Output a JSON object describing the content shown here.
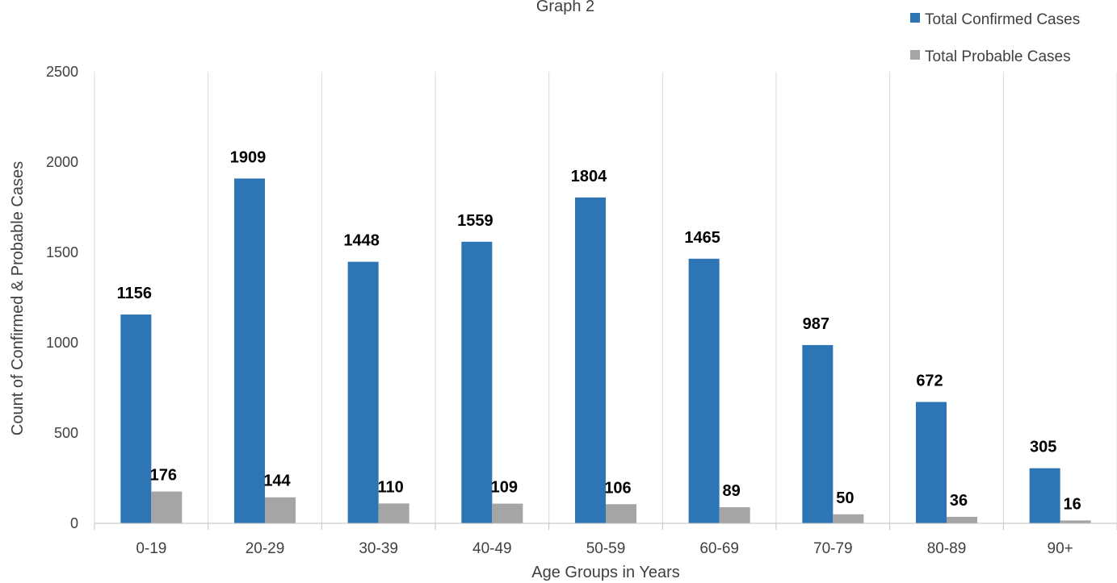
{
  "chart_data": {
    "type": "bar",
    "title": "Graph 2",
    "xlabel": "Age Groups in Years",
    "ylabel": "Count of Confirmed & Probable Cases",
    "ylim": [
      0,
      2500
    ],
    "yticks": [
      0,
      500,
      1000,
      1500,
      2000,
      2500
    ],
    "grid": "vertical category separators",
    "legend_position": "top-right",
    "categories": [
      "0-19",
      "20-29",
      "30-39",
      "40-49",
      "50-59",
      "60-69",
      "70-79",
      "80-89",
      "90+"
    ],
    "series": [
      {
        "name": "Total Confirmed Cases",
        "color": "#2E75B6",
        "values": [
          1156,
          1909,
          1448,
          1559,
          1804,
          1465,
          987,
          672,
          305
        ]
      },
      {
        "name": "Total Probable Cases",
        "color": "#A5A5A5",
        "values": [
          176,
          144,
          110,
          109,
          106,
          89,
          50,
          36,
          16
        ]
      }
    ]
  }
}
